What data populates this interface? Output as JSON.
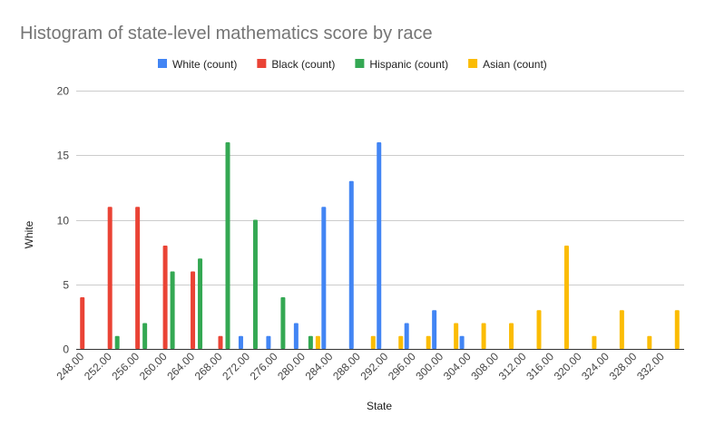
{
  "chart_data": {
    "type": "bar",
    "title": "Histogram of state-level mathematics score by race",
    "xlabel": "State",
    "ylabel": "White",
    "ylim": [
      0,
      20
    ],
    "yticks": [
      "0",
      "5",
      "10",
      "15",
      "20"
    ],
    "grid": true,
    "legend_position": "top",
    "categories": [
      "248.00",
      "252.00",
      "256.00",
      "260.00",
      "264.00",
      "268.00",
      "272.00",
      "276.00",
      "280.00",
      "284.00",
      "288.00",
      "292.00",
      "296.00",
      "300.00",
      "304.00",
      "308.00",
      "312.00",
      "316.00",
      "320.00",
      "324.00",
      "328.00",
      "332.00"
    ],
    "series": [
      {
        "name": "White (count)",
        "color": "#4285F4",
        "values": [
          0,
          0,
          0,
          0,
          0,
          0,
          1,
          1,
          2,
          11,
          13,
          16,
          2,
          3,
          1,
          0,
          0,
          0,
          0,
          0,
          0,
          0
        ]
      },
      {
        "name": "Black (count)",
        "color": "#EA4335",
        "values": [
          4,
          11,
          11,
          8,
          6,
          1,
          0,
          0,
          0,
          0,
          0,
          0,
          0,
          0,
          0,
          0,
          0,
          0,
          0,
          0,
          0,
          0
        ]
      },
      {
        "name": "Hispanic (count)",
        "color": "#34A853",
        "values": [
          0,
          1,
          2,
          6,
          7,
          16,
          10,
          4,
          1,
          0,
          0,
          0,
          0,
          0,
          0,
          0,
          0,
          0,
          0,
          0,
          0,
          0
        ]
      },
      {
        "name": "Asian (count)",
        "color": "#FBBC04",
        "values": [
          0,
          0,
          0,
          0,
          0,
          0,
          0,
          0,
          1,
          0,
          1,
          1,
          1,
          2,
          2,
          2,
          3,
          8,
          1,
          3,
          1,
          3
        ]
      }
    ]
  }
}
